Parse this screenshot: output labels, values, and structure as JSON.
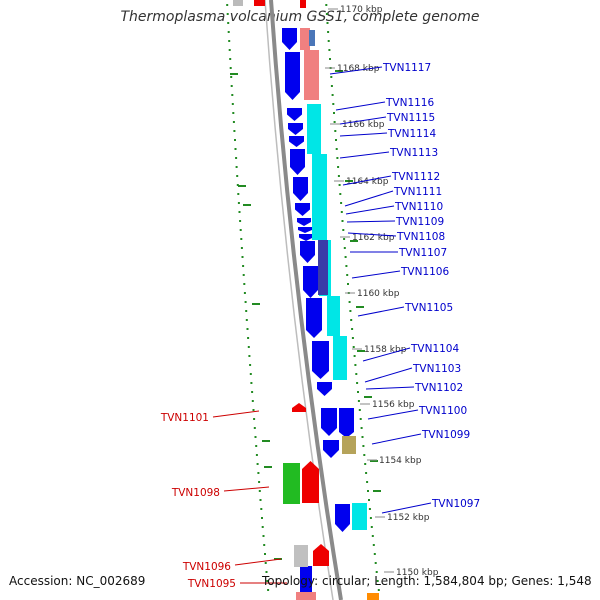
{
  "title": "Thermoplasma volcanium GSS1, complete genome",
  "footer": {
    "accession": "Accession: NC_002689",
    "summary": "Topology: circular; Length: 1,584,804 bp; Genes: 1,548"
  },
  "colors": {
    "forward_cds": "#0000ee",
    "reverse_cds": "#ee0000",
    "forward_label": "#0000cc",
    "reverse_label": "#cc0000",
    "cog_cyan": "#00e6e6",
    "cog_pink": "#f08080",
    "cog_green": "#22bb22",
    "cog_olive": "#b5a35a",
    "cog_grey": "#c0c0c0",
    "backbone": "#888888",
    "gc_marks": "#228b22",
    "tick_text": "#333333"
  },
  "kbp_ticks": [
    "1170 kbp",
    "1168 kbp",
    "1166 kbp",
    "1164 kbp",
    "1162 kbp",
    "1160 kbp",
    "1158 kbp",
    "1156 kbp",
    "1154 kbp",
    "1152 kbp",
    "1150 kbp"
  ],
  "gene_labels_forward": [
    "TVN1117",
    "TVN1116",
    "TVN1115",
    "TVN1114",
    "TVN1113",
    "TVN1112",
    "TVN1111",
    "TVN1110",
    "TVN1109",
    "TVN1108",
    "TVN1107",
    "TVN1106",
    "TVN1105",
    "TVN1104",
    "TVN1103",
    "TVN1102",
    "TVN1100",
    "TVN1099",
    "TVN1097"
  ],
  "gene_labels_reverse": [
    "TVN1101",
    "TVN1098",
    "TVN1096",
    "TVN1095"
  ]
}
